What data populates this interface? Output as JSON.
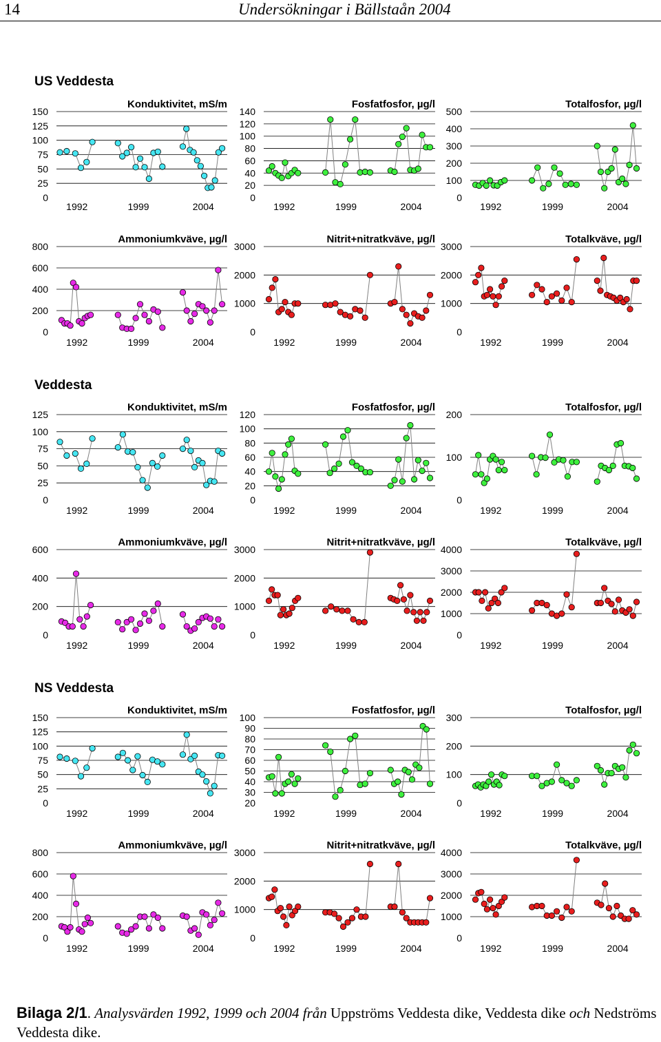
{
  "page": {
    "number": "14",
    "title": "Undersökningar i Bällstaån 2004"
  },
  "sections": [
    {
      "title": "US Veddesta"
    },
    {
      "title": "Veddesta"
    },
    {
      "title": "NS Veddesta"
    }
  ],
  "colors": {
    "cyan": "#46E6F2",
    "green": "#3EF03E",
    "magenta": "#E62AE6",
    "red": "#E81E1E",
    "line": "#808080",
    "marker_edge": "#000000"
  },
  "x_labels": [
    "1992",
    "1999",
    "2004"
  ],
  "caption": {
    "label": "Bilaga 2/1",
    "t1": ". ",
    "t2": "Analysvärden 1992, 1999 och 2004 från ",
    "t3": "Uppströms Veddesta dike",
    "t4": ", ",
    "t5": "Veddesta dike ",
    "t6": "och",
    "t7": " Nedströms Veddesta dike."
  },
  "chart_data": [
    {
      "id": "us-kond",
      "type": "line",
      "section": "US Veddesta",
      "title": "Konduktivitet, mS/m",
      "color": "cyan",
      "ylim": [
        0,
        150
      ],
      "yticks": [
        "150",
        "125",
        "100",
        "75",
        "50",
        "25",
        "0"
      ],
      "series": [
        [
          79,
          81
        ],
        [
          77,
          52,
          62,
          97
        ],
        [
          95,
          72,
          78,
          88,
          53,
          68,
          53,
          33,
          78,
          80,
          54
        ],
        [
          89,
          120,
          83,
          79,
          65,
          55,
          38,
          17,
          18,
          30,
          79,
          86
        ]
      ]
    },
    {
      "id": "us-fosfat",
      "type": "line",
      "section": "US Veddesta",
      "title": "Fosfatfosfor, µg/l",
      "color": "green",
      "ylim": [
        0,
        140
      ],
      "yticks": [
        "140",
        "120",
        "100",
        "80",
        "60",
        "40",
        "20",
        "0"
      ],
      "series": [
        [
          44,
          51,
          40,
          36,
          32,
          57,
          35,
          40,
          45,
          40
        ],
        [
          41,
          127,
          25,
          22,
          54,
          95,
          127,
          41,
          42,
          41
        ],
        [
          44,
          42,
          87,
          99,
          113,
          45,
          44,
          47,
          102,
          82,
          82
        ]
      ]
    },
    {
      "id": "us-totp",
      "type": "line",
      "section": "US Veddesta",
      "title": "Totalfosfor, µg/l",
      "color": "green",
      "ylim": [
        0,
        500
      ],
      "yticks": [
        "500",
        "400",
        "300",
        "200",
        "100",
        "0"
      ],
      "series": [
        [
          75,
          70,
          85,
          70,
          100,
          72,
          70,
          90,
          100
        ],
        [
          100,
          175,
          55,
          80,
          175,
          140,
          75,
          80,
          75
        ],
        [
          300,
          150,
          55,
          150,
          170,
          280,
          90,
          110,
          80,
          190,
          420,
          170
        ]
      ]
    },
    {
      "id": "us-amm",
      "type": "line",
      "section": "US Veddesta",
      "title": "Ammoniumkväve, µg/l",
      "color": "magenta",
      "ylim": [
        0,
        800
      ],
      "yticks": [
        "800",
        "600",
        "400",
        "200",
        "0"
      ],
      "series": [
        [
          110,
          80,
          80,
          60,
          460,
          420,
          100,
          80,
          130,
          150,
          160
        ],
        [
          160,
          40,
          30,
          30,
          130,
          260,
          160,
          100,
          210,
          190,
          40
        ],
        [
          370,
          200,
          100,
          170,
          260,
          240,
          200,
          90,
          200,
          580,
          260
        ]
      ]
    },
    {
      "id": "us-nn",
      "type": "line",
      "section": "US Veddesta",
      "title": "Nitrit+nitratkväve, µg/l",
      "color": "red",
      "ylim": [
        0,
        3000
      ],
      "yticks": [
        "3000",
        "2000",
        "1000",
        "0"
      ],
      "series": [
        [
          1150,
          1550,
          1850,
          700,
          800,
          1050,
          700,
          600,
          1000,
          1000
        ],
        [
          950,
          950,
          1000,
          700,
          600,
          550,
          800,
          750,
          500,
          2000
        ],
        [
          1000,
          1050,
          2300,
          800,
          600,
          300,
          650,
          550,
          500,
          750,
          1300
        ]
      ]
    },
    {
      "id": "us-totn",
      "type": "line",
      "section": "US Veddesta",
      "title": "Totalkväve, µg/l",
      "color": "red",
      "ylim": [
        0,
        3000
      ],
      "yticks": [
        "3000",
        "2000",
        "1000",
        "0"
      ],
      "series": [
        [
          1750,
          2000,
          2250,
          1250,
          1300,
          1500,
          1250,
          950,
          1250,
          1600,
          1800
        ],
        [
          1300,
          1650,
          1500,
          1050,
          1250,
          1350,
          1100,
          1550,
          1050,
          2550
        ],
        [
          1800,
          1450,
          2600,
          1300,
          1250,
          1200,
          1100,
          1200,
          1050,
          1150,
          800,
          1800,
          1800
        ]
      ]
    },
    {
      "id": "vd-kond",
      "type": "line",
      "section": "Veddesta",
      "title": "Konduktivitet, mS/m",
      "color": "cyan",
      "ylim": [
        0,
        125
      ],
      "yticks": [
        "125",
        "100",
        "75",
        "50",
        "25",
        "0"
      ],
      "series": [
        [
          85,
          65
        ],
        [
          68,
          46,
          53,
          90
        ],
        [
          77,
          96,
          71,
          70,
          48,
          29,
          18,
          54,
          49,
          65
        ],
        [
          75,
          88,
          72,
          48,
          58,
          54,
          22,
          28,
          27,
          72,
          68
        ]
      ]
    },
    {
      "id": "vd-fosfat",
      "type": "line",
      "section": "Veddesta",
      "title": "Fosfatfosfor, µg/l",
      "color": "green",
      "ylim": [
        0,
        120
      ],
      "yticks": [
        "120",
        "100",
        "80",
        "60",
        "40",
        "20",
        "0"
      ],
      "series": [
        [
          40,
          66,
          33,
          16,
          29,
          64,
          78,
          86,
          41,
          37
        ],
        [
          78,
          38,
          44,
          51,
          89,
          98,
          53,
          48,
          44,
          39,
          39
        ],
        [
          20,
          28,
          57,
          26,
          87,
          105,
          29,
          56,
          41,
          52,
          31
        ]
      ]
    },
    {
      "id": "vd-totp",
      "type": "line",
      "section": "Veddesta",
      "title": "Totalfosfor, µg/l",
      "color": "green",
      "ylim": [
        0,
        200
      ],
      "yticks": [
        "200",
        "100",
        "0"
      ],
      "series": [
        [
          60,
          105,
          60,
          40,
          50,
          95,
          103,
          95,
          70,
          89,
          70
        ],
        [
          103,
          60,
          100,
          99,
          153,
          88,
          95,
          93,
          55,
          89,
          89
        ],
        [
          43,
          80,
          75,
          70,
          80,
          130,
          133,
          80,
          79,
          75,
          50
        ]
      ]
    },
    {
      "id": "vd-amm",
      "type": "line",
      "section": "Veddesta",
      "title": "Ammoniumkväve, µg/l",
      "color": "magenta",
      "ylim": [
        0,
        600
      ],
      "yticks": [
        "600",
        "400",
        "200",
        "0"
      ],
      "series": [
        [
          95,
          85,
          60,
          60,
          430,
          110,
          60,
          130,
          210
        ],
        [
          90,
          40,
          90,
          110,
          35,
          80,
          150,
          100,
          170,
          220,
          60
        ],
        [
          145,
          60,
          30,
          45,
          90,
          120,
          130,
          115,
          60,
          110,
          60
        ]
      ]
    },
    {
      "id": "vd-nn",
      "type": "line",
      "section": "Veddesta",
      "title": "Nitrit+nitratkväve, µg/l",
      "color": "red",
      "ylim": [
        0,
        3000
      ],
      "yticks": [
        "3000",
        "2000",
        "1000",
        "0"
      ],
      "series": [
        [
          1200,
          1600,
          1400,
          1400,
          700,
          900,
          700,
          750,
          950,
          1200,
          1300
        ],
        [
          850,
          1000,
          900,
          850,
          850,
          550,
          450,
          450,
          2900
        ],
        [
          1300,
          1250,
          1200,
          1750,
          1250,
          850,
          1400,
          800,
          500,
          800,
          500,
          800,
          1200
        ]
      ]
    },
    {
      "id": "vd-totn",
      "type": "line",
      "section": "Veddesta",
      "title": "Totalkväve, µg/l",
      "color": "red",
      "ylim": [
        0,
        4000
      ],
      "yticks": [
        "4000",
        "3000",
        "2000",
        "1000",
        "0"
      ],
      "series": [
        [
          2000,
          2000,
          1600,
          2000,
          1250,
          1500,
          1700,
          1500,
          2000,
          2200
        ],
        [
          1150,
          1500,
          1500,
          1400,
          1000,
          900,
          1000,
          1900,
          1300,
          3800
        ],
        [
          1500,
          1500,
          2200,
          1600,
          1450,
          1100,
          1650,
          1150,
          1050,
          1200,
          900,
          1550
        ]
      ]
    },
    {
      "id": "ns-kond",
      "type": "line",
      "section": "NS Veddesta",
      "title": "Konduktivitet, mS/m",
      "color": "cyan",
      "ylim": [
        0,
        150
      ],
      "yticks": [
        "150",
        "125",
        "100",
        "75",
        "50",
        "25",
        "0"
      ],
      "series": [
        [
          81,
          78
        ],
        [
          74,
          47,
          62,
          96
        ],
        [
          81,
          88,
          75,
          58,
          82,
          49,
          37,
          76,
          73,
          68
        ],
        [
          85,
          120,
          77,
          83,
          55,
          50,
          38,
          17,
          30,
          84,
          83
        ]
      ]
    },
    {
      "id": "ns-fosfat",
      "type": "line",
      "section": "NS Veddesta",
      "title": "Fosfatfosfor, µg/l",
      "color": "green",
      "ylim": [
        20,
        100
      ],
      "yticks": [
        "100",
        "90",
        "80",
        "70",
        "60",
        "50",
        "40",
        "30",
        "20"
      ],
      "series": [
        [
          44,
          45,
          29,
          63,
          29,
          38,
          40,
          47,
          38,
          43
        ],
        [
          74,
          68,
          26,
          32,
          50,
          80,
          83,
          37,
          38,
          48
        ],
        [
          51,
          38,
          40,
          28,
          51,
          49,
          42,
          56,
          53,
          92,
          89,
          38
        ]
      ]
    },
    {
      "id": "ns-totp",
      "type": "line",
      "section": "NS Veddesta",
      "title": "Totalfosfor, µg/l",
      "color": "green",
      "ylim": [
        0,
        300
      ],
      "yticks": [
        "300",
        "200",
        "100",
        "0"
      ],
      "series": [
        [
          60,
          65,
          55,
          65,
          60,
          75,
          100,
          65,
          75,
          63,
          100,
          95
        ],
        [
          95,
          95,
          60,
          70,
          75,
          135,
          80,
          70,
          60,
          80
        ],
        [
          130,
          115,
          65,
          105,
          105,
          130,
          120,
          125,
          90,
          185,
          205,
          175
        ]
      ]
    },
    {
      "id": "ns-amm",
      "type": "line",
      "section": "NS Veddesta",
      "title": "Ammoniumkväve, µg/l",
      "color": "magenta",
      "ylim": [
        0,
        800
      ],
      "yticks": [
        "800",
        "600",
        "400",
        "200",
        "0"
      ],
      "series": [
        [
          110,
          100,
          60,
          100,
          580,
          320,
          80,
          60,
          130,
          190,
          140
        ],
        [
          110,
          50,
          40,
          80,
          110,
          200,
          200,
          90,
          220,
          190,
          90
        ],
        [
          210,
          200,
          70,
          90,
          30,
          240,
          220,
          120,
          170,
          330,
          230
        ]
      ]
    },
    {
      "id": "ns-nn",
      "type": "line",
      "section": "NS Veddesta",
      "title": "Nitrit+nitratkväve, µg/l",
      "color": "red",
      "ylim": [
        0,
        3000
      ],
      "yticks": [
        "3000",
        "2000",
        "1000",
        "0"
      ],
      "series": [
        [
          1400,
          1450,
          1700,
          950,
          1050,
          750,
          450,
          1100,
          800,
          950,
          1100
        ],
        [
          900,
          900,
          850,
          700,
          400,
          550,
          700,
          1000,
          750,
          750,
          2600
        ],
        [
          1100,
          1100,
          2600,
          900,
          700,
          550,
          550,
          550,
          550,
          550,
          1400
        ]
      ]
    },
    {
      "id": "ns-totn",
      "type": "line",
      "section": "NS Veddesta",
      "title": "Totalkväve, µg/l",
      "color": "red",
      "ylim": [
        0,
        4000
      ],
      "yticks": [
        "4000",
        "3000",
        "2000",
        "1000",
        "0"
      ],
      "series": [
        [
          1800,
          2100,
          2150,
          1600,
          1350,
          1800,
          1400,
          1100,
          1500,
          1700,
          1900
        ],
        [
          1450,
          1500,
          1500,
          1050,
          1050,
          1250,
          950,
          1450,
          1250,
          3650
        ],
        [
          1650,
          1550,
          2550,
          1400,
          1000,
          1500,
          1050,
          900,
          900,
          1300,
          1100
        ]
      ]
    }
  ]
}
